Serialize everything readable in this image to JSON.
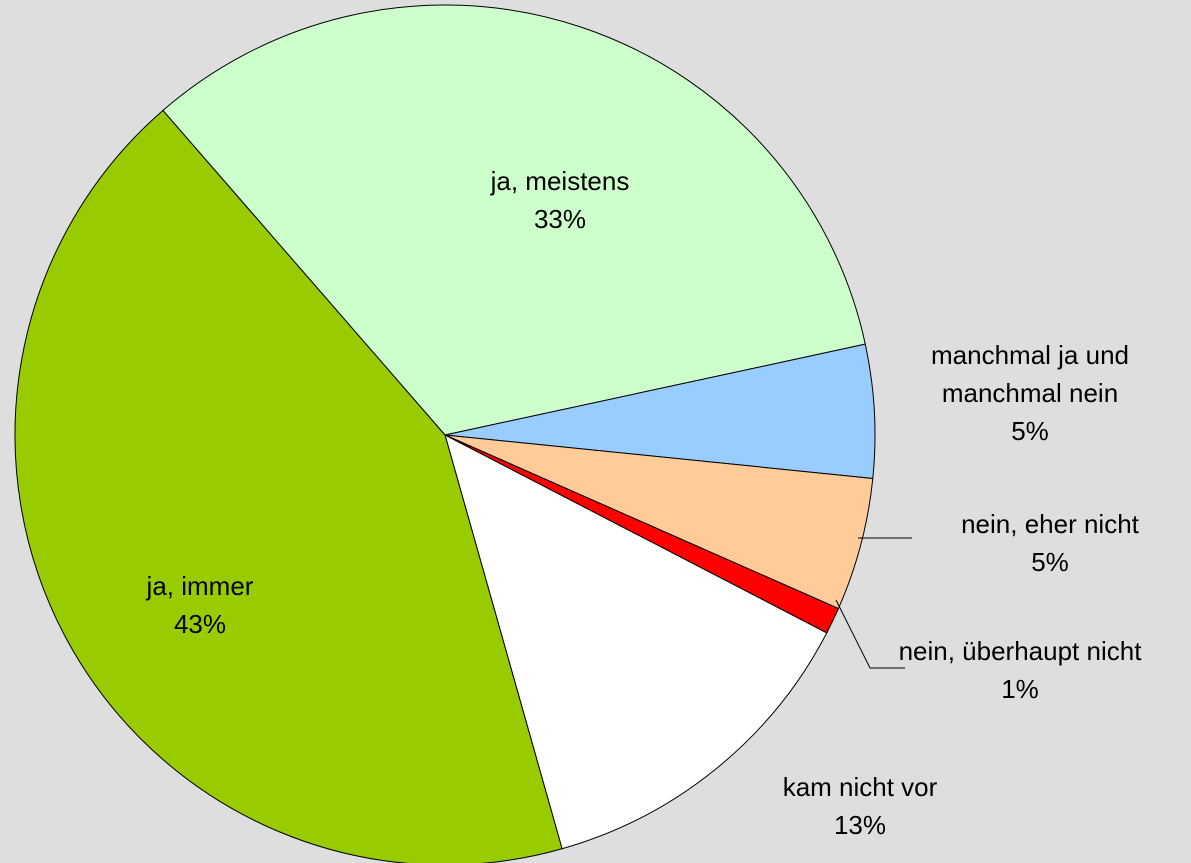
{
  "chart_data": {
    "type": "pie",
    "categories": [
      "ja, meistens",
      "manchmal ja und manchmal nein",
      "nein, eher nicht",
      "nein, überhaupt nicht",
      "kam nicht vor",
      "ja, immer"
    ],
    "values": [
      33,
      5,
      5,
      1,
      13,
      43
    ],
    "value_labels": [
      "33%",
      "5%",
      "5%",
      "1%",
      "13%",
      "43%"
    ],
    "colors": [
      "#ccffcc",
      "#99ccff",
      "#ffcc99",
      "#ff0000",
      "#ffffff",
      "#99cc00"
    ]
  }
}
